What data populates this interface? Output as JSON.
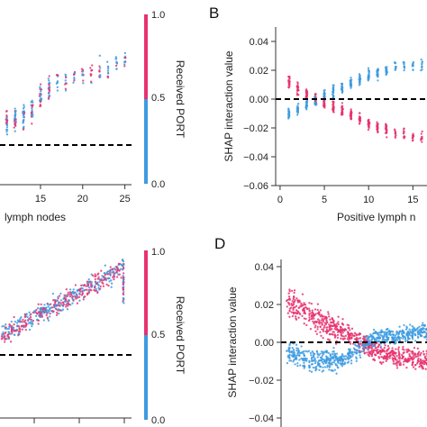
{
  "colors": {
    "received": "#e8316f",
    "not_received": "#3d9be0",
    "baseline": "#000000",
    "axis": "#333333"
  },
  "colorbar": {
    "label": "Received PORT",
    "ticks": [
      "1.0",
      "0.5",
      "0.0"
    ]
  },
  "panels": {
    "A": {
      "letter": "",
      "xlabel": "lymph nodes",
      "xticks": [
        "15",
        "20",
        "25"
      ]
    },
    "B": {
      "letter": "B",
      "ylabel": "SHAP interaction value",
      "xlabel": "Positive lymph n",
      "yticks": [
        "0.04",
        "0.02",
        "0.00",
        "−0.02",
        "−0.04",
        "−0.06"
      ],
      "xticks": [
        "0",
        "5",
        "10",
        "15"
      ]
    },
    "C": {
      "letter": ""
    },
    "D": {
      "letter": "D",
      "ylabel": "SHAP interaction value",
      "yticks": [
        "0.04",
        "0.02",
        "0.00",
        "−0.02",
        "−0.04"
      ]
    }
  },
  "chart_data": [
    {
      "panel": "A",
      "type": "scatter",
      "xlabel": "lymph nodes",
      "xlim": [
        10,
        26
      ],
      "x_tick_values": [
        15,
        20,
        25
      ],
      "color_by": "Received PORT",
      "series": [
        {
          "name": "",
          "points": [
            {
              "x": 11,
              "y_rel": 0.38
            },
            {
              "x": 12,
              "y_rel": 0.4
            },
            {
              "x": 13,
              "y_rel": 0.42
            },
            {
              "x": 14,
              "y_rel": 0.45
            },
            {
              "x": 15,
              "y_rel": 0.55
            },
            {
              "x": 16,
              "y_rel": 0.6
            },
            {
              "x": 17,
              "y_rel": 0.64
            },
            {
              "x": 18,
              "y_rel": 0.62
            },
            {
              "x": 19,
              "y_rel": 0.66
            },
            {
              "x": 20,
              "y_rel": 0.68
            },
            {
              "x": 21,
              "y_rel": 0.7
            },
            {
              "x": 22,
              "y_rel": 0.72
            },
            {
              "x": 23,
              "y_rel": 0.7
            },
            {
              "x": 24,
              "y_rel": 0.74
            },
            {
              "x": 25,
              "y_rel": 0.76
            }
          ]
        }
      ],
      "baseline": 0
    },
    {
      "panel": "B",
      "type": "scatter",
      "xlabel": "Positive lymph n",
      "ylabel": "SHAP interaction value",
      "xlim": [
        -0.5,
        17
      ],
      "ylim": [
        -0.06,
        0.05
      ],
      "x_tick_values": [
        0,
        5,
        10,
        15
      ],
      "y_tick_values": [
        0.04,
        0.02,
        0.0,
        -0.02,
        -0.04,
        -0.06
      ],
      "baseline": 0.0,
      "trend": [
        {
          "x": 1,
          "pink": 0.012,
          "blue": -0.01
        },
        {
          "x": 2,
          "pink": 0.007,
          "blue": -0.007
        },
        {
          "x": 3,
          "pink": 0.003,
          "blue": -0.004
        },
        {
          "x": 4,
          "pink": 0.0,
          "blue": -0.001
        },
        {
          "x": 5,
          "pink": -0.002,
          "blue": 0.002
        },
        {
          "x": 6,
          "pink": -0.005,
          "blue": 0.005
        },
        {
          "x": 7,
          "pink": -0.008,
          "blue": 0.008
        },
        {
          "x": 8,
          "pink": -0.011,
          "blue": 0.011
        },
        {
          "x": 9,
          "pink": -0.014,
          "blue": 0.014
        },
        {
          "x": 10,
          "pink": -0.017,
          "blue": 0.016
        },
        {
          "x": 11,
          "pink": -0.019,
          "blue": 0.018
        },
        {
          "x": 12,
          "pink": -0.021,
          "blue": 0.02
        },
        {
          "x": 13,
          "pink": -0.023,
          "blue": 0.021
        },
        {
          "x": 14,
          "pink": -0.024,
          "blue": 0.022
        },
        {
          "x": 15,
          "pink": -0.025,
          "blue": 0.023
        },
        {
          "x": 16,
          "pink": -0.026,
          "blue": 0.024
        }
      ]
    },
    {
      "panel": "C",
      "type": "scatter",
      "color_by": "Received PORT",
      "baseline": 0
    },
    {
      "panel": "D",
      "type": "scatter",
      "ylabel": "SHAP interaction value",
      "ylim": [
        -0.04,
        0.04
      ],
      "y_tick_values": [
        0.04,
        0.02,
        0.0,
        -0.02,
        -0.04
      ],
      "baseline": 0.0,
      "trend": [
        {
          "x": 0.0,
          "pink": 0.022,
          "blue": -0.005
        },
        {
          "x": 0.2,
          "pink": 0.012,
          "blue": -0.01
        },
        {
          "x": 0.4,
          "pink": 0.006,
          "blue": -0.009
        },
        {
          "x": 0.6,
          "pink": -0.004,
          "blue": 0.002
        },
        {
          "x": 0.8,
          "pink": -0.008,
          "blue": 0.004
        },
        {
          "x": 1.0,
          "pink": -0.01,
          "blue": 0.006
        }
      ]
    }
  ]
}
